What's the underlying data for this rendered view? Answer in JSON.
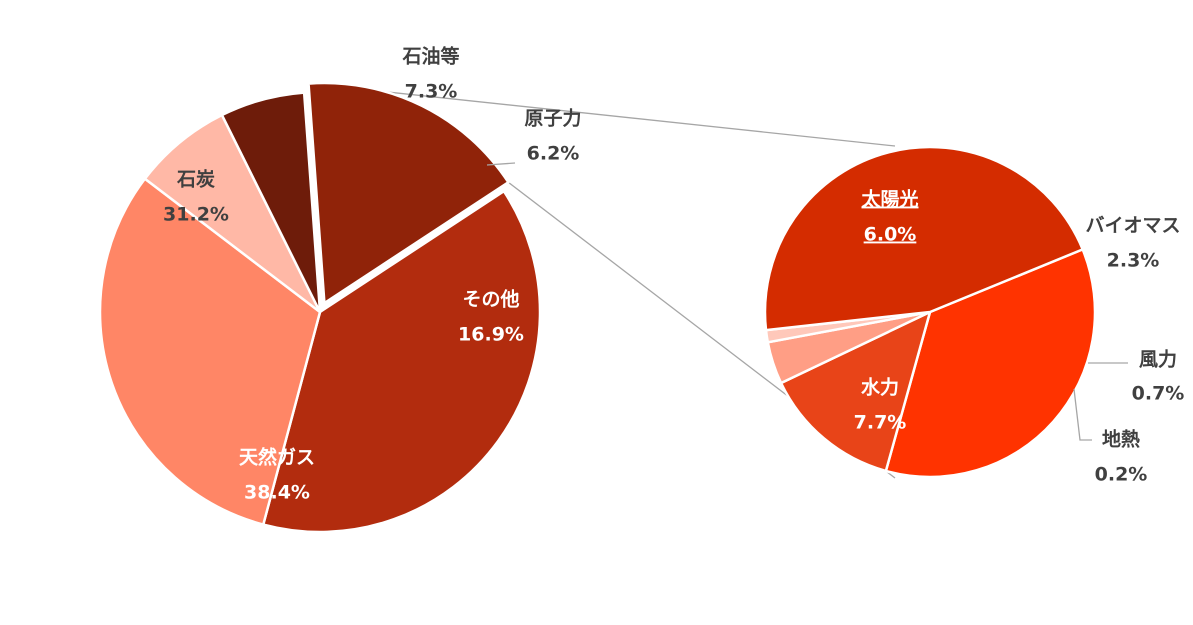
{
  "chart_data": [
    {
      "type": "pie",
      "categories": [
        "天然ガス",
        "石炭",
        "石油等",
        "原子力",
        "その他"
      ],
      "values": [
        38.4,
        31.2,
        7.3,
        6.2,
        16.9
      ],
      "value_labels": [
        "38.4%",
        "31.2%",
        "7.3%",
        "6.2%",
        "16.9%"
      ],
      "colors": [
        "#B22C0E",
        "#FF8666",
        "#FFB8A6",
        "#6E1C0A",
        "#902309"
      ],
      "label_colors": [
        "light",
        "dark",
        "dark",
        "dark",
        "light"
      ],
      "exploded_slice": "その他"
    },
    {
      "type": "pie",
      "categories": [
        "太陽光",
        "バイオマス",
        "風力",
        "地熱",
        "水力"
      ],
      "values": [
        6.0,
        2.3,
        0.7,
        0.2,
        7.7
      ],
      "value_labels": [
        "6.0%",
        "2.3%",
        "0.7%",
        "0.2%",
        "7.7%"
      ],
      "colors": [
        "#FF3300",
        "#E84418",
        "#FF9E85",
        "#FFC8BA",
        "#D42C00"
      ],
      "label_colors": [
        "light",
        "dark",
        "dark",
        "dark",
        "light"
      ],
      "underlined_label": "太陽光",
      "breakdown_of": "その他"
    }
  ]
}
